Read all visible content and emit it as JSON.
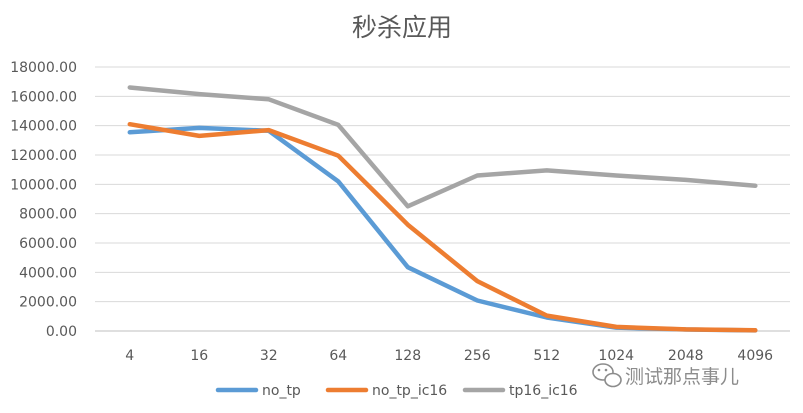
{
  "chart_data": {
    "type": "line",
    "title": "秒杀应用",
    "xlabel": "",
    "ylabel": "",
    "categories": [
      "4",
      "16",
      "32",
      "64",
      "128",
      "256",
      "512",
      "1024",
      "2048",
      "4096"
    ],
    "y_ticks": [
      "0.00",
      "2000.00",
      "4000.00",
      "6000.00",
      "8000.00",
      "10000.00",
      "12000.00",
      "14000.00",
      "16000.00",
      "18000.00"
    ],
    "ylim": [
      0,
      18000
    ],
    "grid": true,
    "legend_position": "bottom",
    "series": [
      {
        "name": "no_tp",
        "color": "#5b9bd5",
        "values": [
          13550,
          13850,
          13650,
          10200,
          4350,
          2080,
          920,
          230,
          100,
          40
        ]
      },
      {
        "name": "no_tp_ic16",
        "color": "#ed7d31",
        "values": [
          14100,
          13300,
          13700,
          11950,
          7250,
          3400,
          1050,
          280,
          110,
          50
        ]
      },
      {
        "name": "tp16_ic16",
        "color": "#a5a5a5",
        "values": [
          16600,
          16150,
          15800,
          14050,
          8500,
          10600,
          10950,
          10600,
          10300,
          9900
        ]
      }
    ]
  },
  "watermark": {
    "text": "测试那点事儿",
    "icon": "wechat-icon"
  }
}
